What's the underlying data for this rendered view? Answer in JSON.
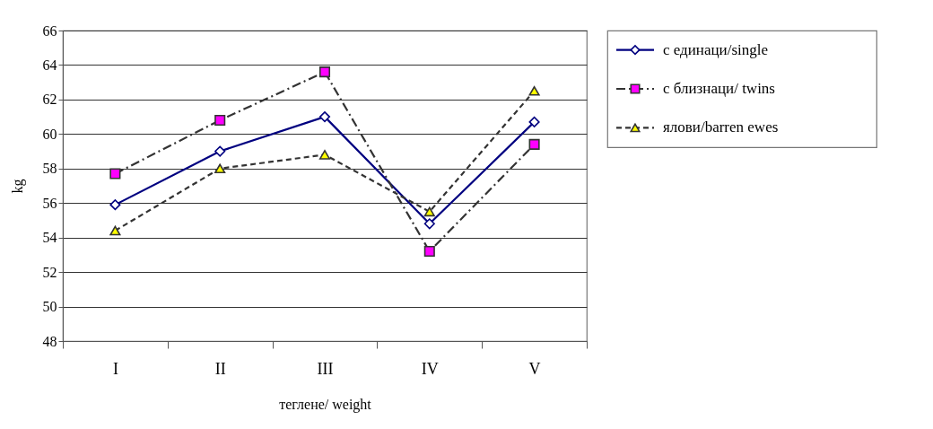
{
  "chart_data": {
    "type": "line",
    "xlabel": "теглене/ weight",
    "ylabel": "kg",
    "categories": [
      "I",
      "II",
      "III",
      "IV",
      "V"
    ],
    "series": [
      {
        "name": "с единаци/single",
        "color": "#000080",
        "marker": "diamond",
        "line_style": "solid",
        "values": [
          55.9,
          59.0,
          61.0,
          54.8,
          60.7
        ]
      },
      {
        "name": "с близнаци/ twins",
        "color": "#ff00ff",
        "marker": "square",
        "line_style": "dashdot",
        "values": [
          57.7,
          60.8,
          63.6,
          53.2,
          59.4
        ]
      },
      {
        "name": "ялови/barren ewes",
        "color": "#ffff00",
        "marker": "triangle",
        "line_style": "dashed",
        "values": [
          54.4,
          58.0,
          58.8,
          55.5,
          62.5
        ]
      }
    ],
    "ylim": [
      48,
      66
    ],
    "yticks": [
      48,
      50,
      52,
      54,
      56,
      58,
      60,
      62,
      64,
      66
    ],
    "grid": "y",
    "legend": "right"
  }
}
